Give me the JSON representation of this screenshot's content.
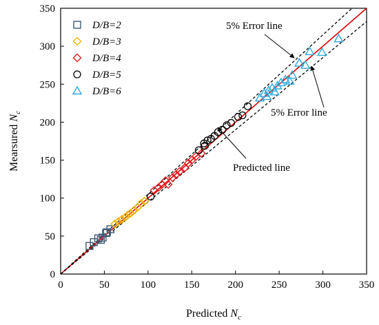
{
  "chart_data": {
    "type": "scatter",
    "xlabel": "Predicted",
    "xlabel_symbol": "N",
    "xlabel_sub": "c",
    "ylabel": "Mearsured",
    "ylabel_symbol": "N",
    "ylabel_sub": "c",
    "xlim": [
      0,
      350
    ],
    "ylim": [
      0,
      350
    ],
    "xticks": [
      0,
      50,
      100,
      150,
      200,
      250,
      300,
      350
    ],
    "yticks": [
      0,
      50,
      100,
      150,
      200,
      250,
      300,
      350
    ],
    "grid": false,
    "legend_position": "top-left",
    "annotations": {
      "upper_error_label": "5% Error line",
      "lower_error_label": "5% Error line",
      "predicted_label": "Predicted line"
    },
    "reference_lines": {
      "predicted_color": "#e00000",
      "error_color": "#000000",
      "error_fraction": 0.05
    },
    "series": [
      {
        "name": "D/B=2",
        "marker": "square",
        "color": "#3d5a72",
        "x": [
          33,
          38,
          43,
          46,
          48,
          52,
          53,
          57
        ],
        "y": [
          37,
          42,
          47,
          45,
          48,
          54,
          55,
          59
        ]
      },
      {
        "name": "D/B=3",
        "marker": "diamond",
        "color": "#f0b400",
        "x": [
          62,
          66,
          70,
          74,
          77,
          80,
          84,
          88,
          92,
          96
        ],
        "y": [
          66,
          69,
          72,
          75,
          78,
          80,
          84,
          88,
          93,
          96
        ]
      },
      {
        "name": "D/B=4",
        "marker": "diamond",
        "color": "#e41a1c",
        "x": [
          107,
          112,
          116,
          120,
          123,
          128,
          132,
          136,
          142,
          146,
          150,
          155,
          161
        ],
        "y": [
          110,
          114,
          118,
          123,
          118,
          127,
          131,
          135,
          140,
          146,
          150,
          155,
          159
        ]
      },
      {
        "name": "D/B=5",
        "marker": "circle",
        "color": "#000000",
        "x": [
          103,
          158,
          164,
          165,
          168,
          172,
          176,
          180,
          185,
          190,
          195,
          203,
          208,
          214
        ],
        "y": [
          102,
          163,
          172,
          169,
          176,
          178,
          182,
          187,
          190,
          196,
          199,
          207,
          209,
          221
        ]
      },
      {
        "name": "D/B=6",
        "marker": "triangle",
        "color": "#2eaadc",
        "x": [
          228,
          233,
          236,
          238,
          242,
          245,
          248,
          252,
          257,
          262,
          265,
          273,
          280,
          285,
          299,
          318
        ],
        "y": [
          232,
          238,
          234,
          242,
          245,
          240,
          248,
          252,
          256,
          254,
          262,
          278,
          275,
          293,
          292,
          310
        ]
      }
    ]
  }
}
